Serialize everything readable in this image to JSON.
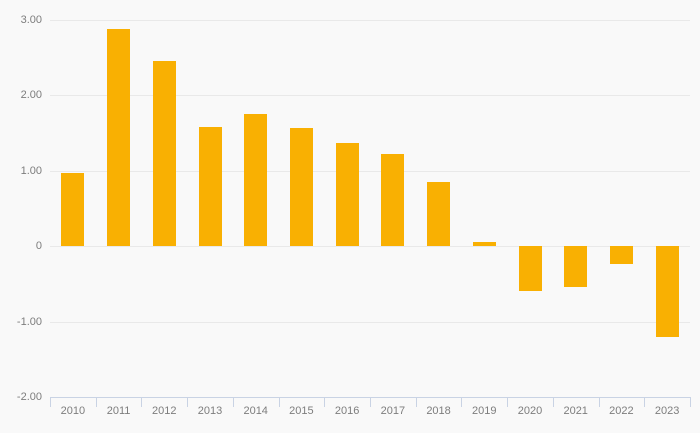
{
  "chart_data": {
    "type": "bar",
    "title": "",
    "xlabel": "",
    "ylabel": "",
    "categories": [
      "2010",
      "2011",
      "2012",
      "2013",
      "2014",
      "2015",
      "2016",
      "2017",
      "2018",
      "2019",
      "2020",
      "2021",
      "2022",
      "2023"
    ],
    "values": [
      0.97,
      2.88,
      2.46,
      1.58,
      1.75,
      1.57,
      1.37,
      1.22,
      0.85,
      0.05,
      -0.59,
      -0.54,
      -0.24,
      -1.21
    ],
    "ylim": [
      -2,
      3
    ],
    "yticks": [
      {
        "value": 3,
        "label": "3.00"
      },
      {
        "value": 2,
        "label": "2.00"
      },
      {
        "value": 1,
        "label": "1.00"
      },
      {
        "value": 0,
        "label": "0"
      },
      {
        "value": -1,
        "label": "-1.00"
      },
      {
        "value": -2,
        "label": "-2.00"
      }
    ],
    "grid": true,
    "legend": false,
    "colors": {
      "bar": "#f9b002",
      "gridline": "#e9e9e9",
      "axis_line": "#c9d3e4",
      "tick_label": "#7d7d7d",
      "background": "#f9f9f9"
    }
  }
}
